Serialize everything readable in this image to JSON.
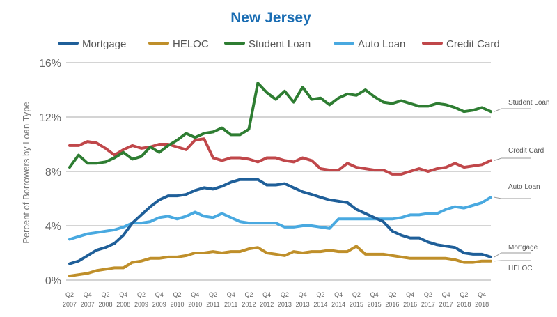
{
  "colors": {
    "title": "#1a6db3",
    "mortgage": "#1f5f99",
    "heloc": "#bf8f2a",
    "student_loan": "#2e7d32",
    "auto_loan": "#49a9e0",
    "credit_card": "#c0474a",
    "grid": "#aaaaaa"
  },
  "chart_data": {
    "type": "line",
    "title": "New Jersey",
    "ylabel": "Percent of Borrowers by Loan Type",
    "xlabel": "",
    "ylim": [
      0,
      16
    ],
    "yticks": [
      "0%",
      "4%",
      "8%",
      "12%",
      "16%"
    ],
    "x_start": "Q2 2007",
    "x_tick_labels": [
      [
        "Q2",
        "2007"
      ],
      [
        "Q4",
        "2007"
      ],
      [
        "Q2",
        "2008"
      ],
      [
        "Q4",
        "2008"
      ],
      [
        "Q2",
        "2009"
      ],
      [
        "Q4",
        "2009"
      ],
      [
        "Q2",
        "2010"
      ],
      [
        "Q4",
        "2010"
      ],
      [
        "Q2",
        "2011"
      ],
      [
        "Q4",
        "2011"
      ],
      [
        "Q2",
        "2012"
      ],
      [
        "Q4",
        "2012"
      ],
      [
        "Q2",
        "2013"
      ],
      [
        "Q4",
        "2013"
      ],
      [
        "Q2",
        "2014"
      ],
      [
        "Q4",
        "2014"
      ],
      [
        "Q2",
        "2015"
      ],
      [
        "Q4",
        "2015"
      ],
      [
        "Q2",
        "2016"
      ],
      [
        "Q4",
        "2016"
      ],
      [
        "Q2",
        "2017"
      ],
      [
        "Q4",
        "2017"
      ],
      [
        "Q2",
        "2018"
      ],
      [
        "Q4",
        "2018"
      ]
    ],
    "legend_placement": "top",
    "grid": true,
    "series": [
      {
        "name": "Mortgage",
        "color_key": "mortgage",
        "end_label": "Mortgage",
        "values": [
          1.2,
          1.4,
          1.8,
          2.2,
          2.4,
          2.7,
          3.3,
          4.2,
          4.8,
          5.4,
          5.9,
          6.2,
          6.2,
          6.3,
          6.6,
          6.8,
          6.7,
          6.9,
          7.2,
          7.4,
          7.4,
          7.4,
          7.0,
          7.0,
          7.1,
          6.8,
          6.5,
          6.3,
          6.1,
          5.9,
          5.8,
          5.7,
          5.2,
          4.9,
          4.6,
          4.3,
          3.6,
          3.3,
          3.1,
          3.1,
          2.8,
          2.6,
          2.5,
          2.4,
          2.0,
          1.9,
          1.9,
          1.7
        ]
      },
      {
        "name": "HELOC",
        "color_key": "heloc",
        "end_label": "HELOC",
        "values": [
          0.3,
          0.4,
          0.5,
          0.7,
          0.8,
          0.9,
          0.9,
          1.3,
          1.4,
          1.6,
          1.6,
          1.7,
          1.7,
          1.8,
          2.0,
          2.0,
          2.1,
          2.0,
          2.1,
          2.1,
          2.3,
          2.4,
          2.0,
          1.9,
          1.8,
          2.1,
          2.0,
          2.1,
          2.1,
          2.2,
          2.1,
          2.1,
          2.5,
          1.9,
          1.9,
          1.9,
          1.8,
          1.7,
          1.6,
          1.6,
          1.6,
          1.6,
          1.6,
          1.5,
          1.3,
          1.3,
          1.4,
          1.4
        ]
      },
      {
        "name": "Student Loan",
        "color_key": "student_loan",
        "end_label": "Student Loan",
        "values": [
          8.3,
          9.2,
          8.6,
          8.6,
          8.7,
          9.0,
          9.4,
          8.9,
          9.1,
          9.8,
          9.4,
          9.9,
          10.3,
          10.8,
          10.5,
          10.8,
          10.9,
          11.2,
          10.7,
          10.7,
          11.1,
          14.5,
          13.8,
          13.3,
          13.9,
          13.1,
          14.2,
          13.3,
          13.4,
          12.9,
          13.4,
          13.7,
          13.6,
          14.0,
          13.5,
          13.1,
          13.0,
          13.2,
          13.0,
          12.8,
          12.8,
          13.0,
          12.9,
          12.7,
          12.4,
          12.5,
          12.7,
          12.4
        ]
      },
      {
        "name": "Auto Loan",
        "color_key": "auto_loan",
        "end_label": "Auto Loan",
        "values": [
          3.0,
          3.2,
          3.4,
          3.5,
          3.6,
          3.7,
          3.9,
          4.2,
          4.2,
          4.3,
          4.6,
          4.7,
          4.5,
          4.7,
          5.0,
          4.7,
          4.6,
          4.9,
          4.6,
          4.3,
          4.2,
          4.2,
          4.2,
          4.2,
          3.9,
          3.9,
          4.0,
          4.0,
          3.9,
          3.8,
          4.5,
          4.5,
          4.5,
          4.5,
          4.5,
          4.5,
          4.5,
          4.6,
          4.8,
          4.8,
          4.9,
          4.9,
          5.2,
          5.4,
          5.3,
          5.5,
          5.7,
          6.1
        ]
      },
      {
        "name": "Credit Card",
        "color_key": "credit_card",
        "end_label": "Credit Card",
        "values": [
          9.9,
          9.9,
          10.2,
          10.1,
          9.7,
          9.2,
          9.6,
          9.9,
          9.7,
          9.8,
          10.0,
          10.0,
          9.8,
          9.6,
          10.3,
          10.4,
          9.0,
          8.8,
          9.0,
          9.0,
          8.9,
          8.7,
          9.0,
          9.0,
          8.8,
          8.7,
          9.0,
          8.8,
          8.2,
          8.1,
          8.1,
          8.6,
          8.3,
          8.2,
          8.1,
          8.1,
          7.8,
          7.8,
          8.0,
          8.2,
          8.0,
          8.2,
          8.3,
          8.6,
          8.3,
          8.4,
          8.5,
          8.8
        ]
      }
    ]
  }
}
